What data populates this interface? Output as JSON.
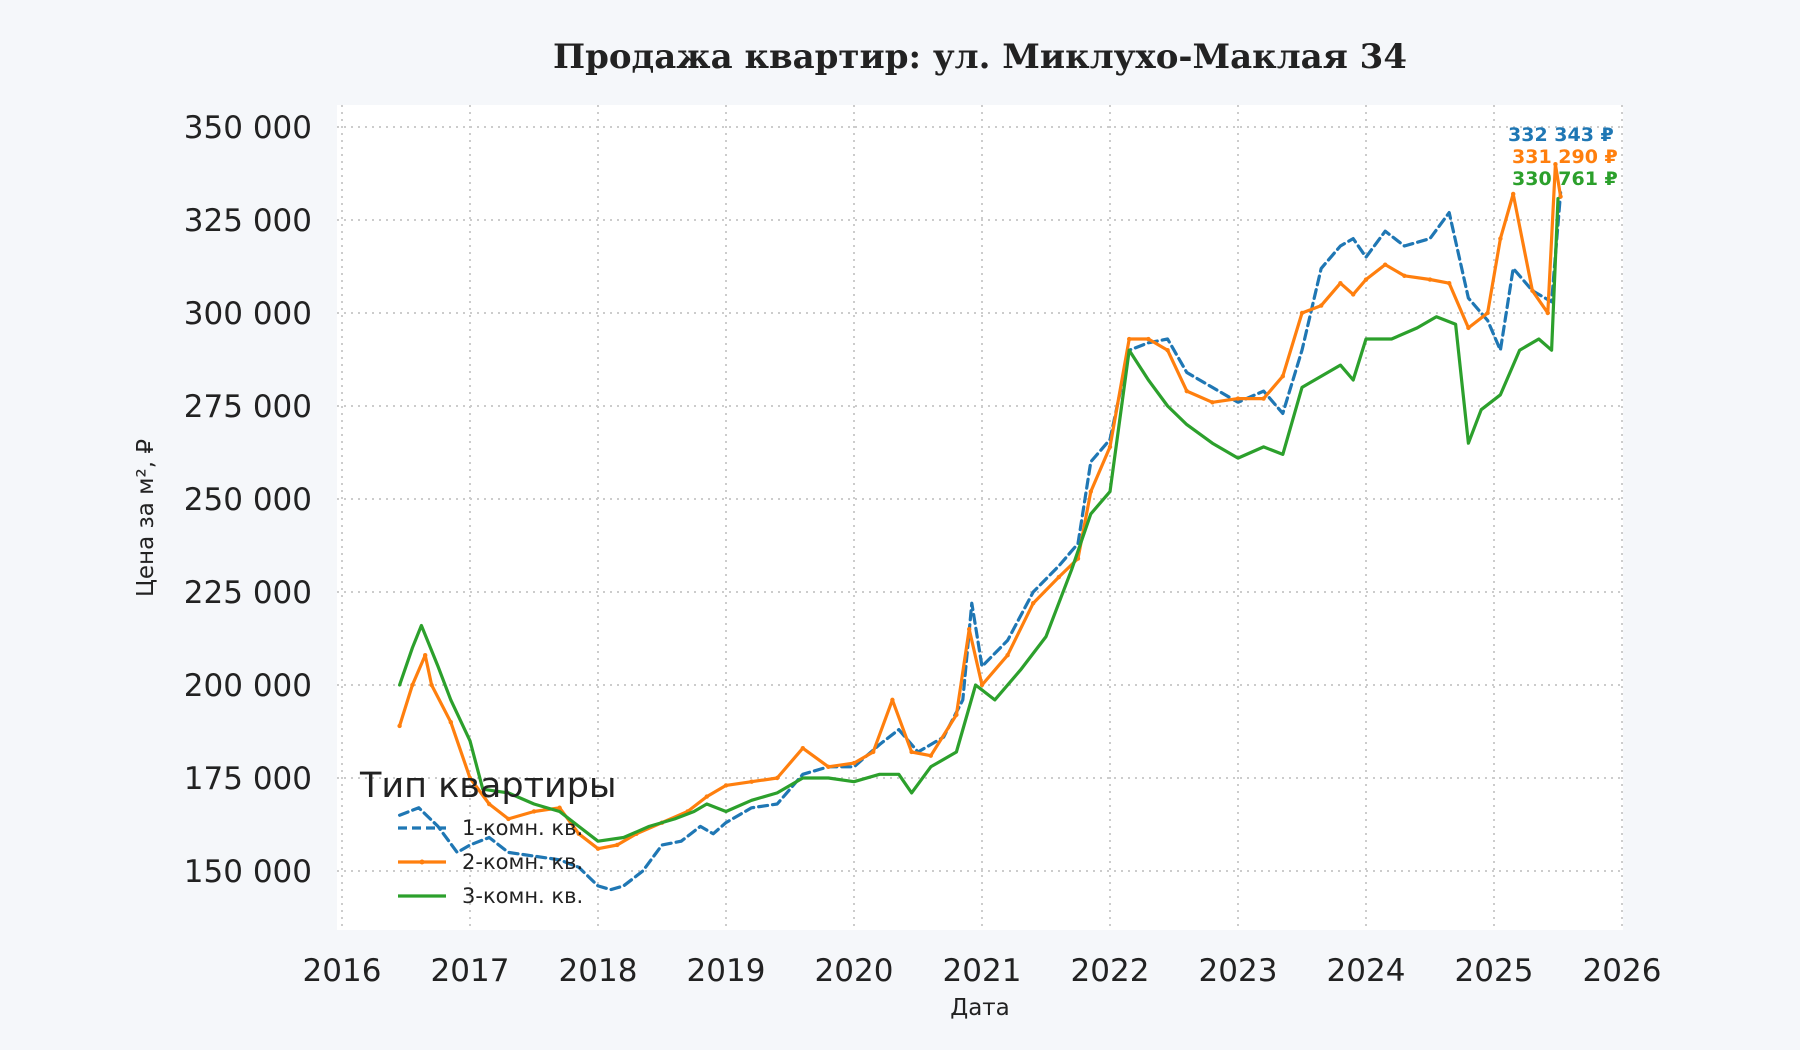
{
  "chart_data": {
    "type": "line",
    "title": "Продажа квартир: ул. Миклухо-Маклая 34",
    "xlabel": "Дата",
    "ylabel": "Цена за м², ₽",
    "xlim": [
      2016,
      2026
    ],
    "ylim": [
      135000,
      355000
    ],
    "x_ticks": [
      "2016",
      "2017",
      "2018",
      "2019",
      "2020",
      "2021",
      "2022",
      "2023",
      "2024",
      "2025",
      "2026"
    ],
    "y_ticks": [
      "150 000",
      "175 000",
      "200 000",
      "225 000",
      "250 000",
      "275 000",
      "300 000",
      "325 000",
      "350 000"
    ],
    "grid": true,
    "legend": {
      "title": "Тип квартиры",
      "position": "lower-left"
    },
    "series": [
      {
        "name": "1-комн. кв.",
        "color": "#1f77b4",
        "style": "dashed",
        "end_label": "332 343 ₽",
        "points": [
          [
            2016.45,
            165000
          ],
          [
            2016.6,
            167000
          ],
          [
            2016.75,
            162000
          ],
          [
            2016.9,
            155000
          ],
          [
            2017.0,
            157000
          ],
          [
            2017.15,
            159000
          ],
          [
            2017.3,
            155000
          ],
          [
            2017.5,
            154000
          ],
          [
            2017.7,
            153000
          ],
          [
            2017.85,
            151000
          ],
          [
            2018.0,
            146000
          ],
          [
            2018.1,
            145000
          ],
          [
            2018.2,
            146000
          ],
          [
            2018.35,
            150000
          ],
          [
            2018.5,
            157000
          ],
          [
            2018.65,
            158000
          ],
          [
            2018.8,
            162000
          ],
          [
            2018.9,
            160000
          ],
          [
            2019.0,
            163000
          ],
          [
            2019.2,
            167000
          ],
          [
            2019.4,
            168000
          ],
          [
            2019.6,
            176000
          ],
          [
            2019.8,
            178000
          ],
          [
            2020.0,
            178000
          ],
          [
            2020.2,
            184000
          ],
          [
            2020.35,
            188000
          ],
          [
            2020.5,
            182000
          ],
          [
            2020.7,
            186000
          ],
          [
            2020.85,
            196000
          ],
          [
            2020.92,
            222000
          ],
          [
            2021.0,
            205000
          ],
          [
            2021.2,
            212000
          ],
          [
            2021.4,
            225000
          ],
          [
            2021.6,
            232000
          ],
          [
            2021.75,
            238000
          ],
          [
            2021.85,
            260000
          ],
          [
            2022.0,
            266000
          ],
          [
            2022.15,
            290000
          ],
          [
            2022.3,
            292000
          ],
          [
            2022.45,
            293000
          ],
          [
            2022.6,
            284000
          ],
          [
            2022.8,
            280000
          ],
          [
            2023.0,
            276000
          ],
          [
            2023.2,
            279000
          ],
          [
            2023.35,
            273000
          ],
          [
            2023.5,
            290000
          ],
          [
            2023.65,
            312000
          ],
          [
            2023.8,
            318000
          ],
          [
            2023.9,
            320000
          ],
          [
            2024.0,
            315000
          ],
          [
            2024.15,
            322000
          ],
          [
            2024.3,
            318000
          ],
          [
            2024.5,
            320000
          ],
          [
            2024.65,
            327000
          ],
          [
            2024.8,
            304000
          ],
          [
            2024.95,
            298000
          ],
          [
            2025.05,
            290000
          ],
          [
            2025.15,
            312000
          ],
          [
            2025.3,
            306000
          ],
          [
            2025.45,
            303000
          ],
          [
            2025.52,
            332343
          ]
        ]
      },
      {
        "name": "2-комн. кв.",
        "color": "#ff7f0e",
        "style": "solid-marker",
        "end_label": "331 290 ₽",
        "points": [
          [
            2016.45,
            189000
          ],
          [
            2016.55,
            200000
          ],
          [
            2016.65,
            208000
          ],
          [
            2016.7,
            200000
          ],
          [
            2016.85,
            190000
          ],
          [
            2017.0,
            175000
          ],
          [
            2017.15,
            168000
          ],
          [
            2017.3,
            164000
          ],
          [
            2017.5,
            166000
          ],
          [
            2017.7,
            167000
          ],
          [
            2017.85,
            160000
          ],
          [
            2018.0,
            156000
          ],
          [
            2018.15,
            157000
          ],
          [
            2018.3,
            160000
          ],
          [
            2018.5,
            163000
          ],
          [
            2018.7,
            166000
          ],
          [
            2018.85,
            170000
          ],
          [
            2019.0,
            173000
          ],
          [
            2019.2,
            174000
          ],
          [
            2019.4,
            175000
          ],
          [
            2019.6,
            183000
          ],
          [
            2019.8,
            178000
          ],
          [
            2020.0,
            179000
          ],
          [
            2020.15,
            182000
          ],
          [
            2020.3,
            196000
          ],
          [
            2020.45,
            182000
          ],
          [
            2020.6,
            181000
          ],
          [
            2020.8,
            192000
          ],
          [
            2020.9,
            215000
          ],
          [
            2021.0,
            200000
          ],
          [
            2021.2,
            208000
          ],
          [
            2021.4,
            222000
          ],
          [
            2021.6,
            229000
          ],
          [
            2021.75,
            234000
          ],
          [
            2021.85,
            252000
          ],
          [
            2022.0,
            264000
          ],
          [
            2022.15,
            293000
          ],
          [
            2022.3,
            293000
          ],
          [
            2022.45,
            290000
          ],
          [
            2022.6,
            279000
          ],
          [
            2022.8,
            276000
          ],
          [
            2023.0,
            277000
          ],
          [
            2023.2,
            277000
          ],
          [
            2023.35,
            283000
          ],
          [
            2023.5,
            300000
          ],
          [
            2023.65,
            302000
          ],
          [
            2023.8,
            308000
          ],
          [
            2023.9,
            305000
          ],
          [
            2024.0,
            309000
          ],
          [
            2024.15,
            313000
          ],
          [
            2024.3,
            310000
          ],
          [
            2024.5,
            309000
          ],
          [
            2024.65,
            308000
          ],
          [
            2024.8,
            296000
          ],
          [
            2024.95,
            300000
          ],
          [
            2025.05,
            320000
          ],
          [
            2025.15,
            332000
          ],
          [
            2025.3,
            306000
          ],
          [
            2025.42,
            300000
          ],
          [
            2025.48,
            340000
          ],
          [
            2025.52,
            331290
          ]
        ]
      },
      {
        "name": "3-комн. кв.",
        "color": "#2ca02c",
        "style": "solid",
        "end_label": "330 761 ₽",
        "points": [
          [
            2016.45,
            200000
          ],
          [
            2016.55,
            210000
          ],
          [
            2016.62,
            216000
          ],
          [
            2016.75,
            205000
          ],
          [
            2016.85,
            196000
          ],
          [
            2017.0,
            185000
          ],
          [
            2017.1,
            172000
          ],
          [
            2017.3,
            171000
          ],
          [
            2017.5,
            168000
          ],
          [
            2017.7,
            166000
          ],
          [
            2017.85,
            162000
          ],
          [
            2018.0,
            158000
          ],
          [
            2018.2,
            159000
          ],
          [
            2018.4,
            162000
          ],
          [
            2018.6,
            164000
          ],
          [
            2018.75,
            166000
          ],
          [
            2018.85,
            168000
          ],
          [
            2019.0,
            166000
          ],
          [
            2019.2,
            169000
          ],
          [
            2019.4,
            171000
          ],
          [
            2019.6,
            175000
          ],
          [
            2019.8,
            175000
          ],
          [
            2020.0,
            174000
          ],
          [
            2020.2,
            176000
          ],
          [
            2020.35,
            176000
          ],
          [
            2020.45,
            171000
          ],
          [
            2020.6,
            178000
          ],
          [
            2020.8,
            182000
          ],
          [
            2020.95,
            200000
          ],
          [
            2021.1,
            196000
          ],
          [
            2021.3,
            204000
          ],
          [
            2021.5,
            213000
          ],
          [
            2021.7,
            231000
          ],
          [
            2021.85,
            246000
          ],
          [
            2022.0,
            252000
          ],
          [
            2022.15,
            290000
          ],
          [
            2022.3,
            282000
          ],
          [
            2022.45,
            275000
          ],
          [
            2022.6,
            270000
          ],
          [
            2022.8,
            265000
          ],
          [
            2023.0,
            261000
          ],
          [
            2023.2,
            264000
          ],
          [
            2023.35,
            262000
          ],
          [
            2023.5,
            280000
          ],
          [
            2023.65,
            283000
          ],
          [
            2023.8,
            286000
          ],
          [
            2023.9,
            282000
          ],
          [
            2024.0,
            293000
          ],
          [
            2024.2,
            293000
          ],
          [
            2024.4,
            296000
          ],
          [
            2024.55,
            299000
          ],
          [
            2024.7,
            297000
          ],
          [
            2024.8,
            265000
          ],
          [
            2024.9,
            274000
          ],
          [
            2025.05,
            278000
          ],
          [
            2025.2,
            290000
          ],
          [
            2025.35,
            293000
          ],
          [
            2025.45,
            290000
          ],
          [
            2025.5,
            330761
          ]
        ]
      }
    ]
  }
}
